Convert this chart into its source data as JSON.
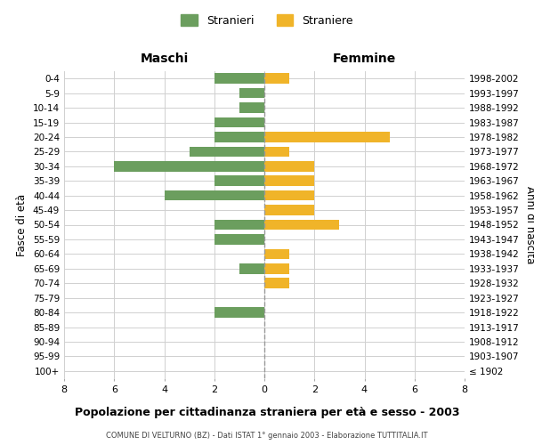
{
  "age_groups": [
    "0-4",
    "5-9",
    "10-14",
    "15-19",
    "20-24",
    "25-29",
    "30-34",
    "35-39",
    "40-44",
    "45-49",
    "50-54",
    "55-59",
    "60-64",
    "65-69",
    "70-74",
    "75-79",
    "80-84",
    "85-89",
    "90-94",
    "95-99",
    "100+"
  ],
  "birth_years": [
    "1998-2002",
    "1993-1997",
    "1988-1992",
    "1983-1987",
    "1978-1982",
    "1973-1977",
    "1968-1972",
    "1963-1967",
    "1958-1962",
    "1953-1957",
    "1948-1952",
    "1943-1947",
    "1938-1942",
    "1933-1937",
    "1928-1932",
    "1923-1927",
    "1918-1922",
    "1913-1917",
    "1908-1912",
    "1903-1907",
    "≤ 1902"
  ],
  "males": [
    2,
    1,
    1,
    2,
    2,
    3,
    6,
    2,
    4,
    0,
    2,
    2,
    0,
    1,
    0,
    0,
    2,
    0,
    0,
    0,
    0
  ],
  "females": [
    1,
    0,
    0,
    0,
    5,
    1,
    2,
    2,
    2,
    2,
    3,
    0,
    1,
    1,
    1,
    0,
    0,
    0,
    0,
    0,
    0
  ],
  "male_color": "#6b9e5e",
  "female_color": "#f0b429",
  "title": "Popolazione per cittadinanza straniera per età e sesso - 2003",
  "subtitle": "COMUNE DI VELTURNO (BZ) - Dati ISTAT 1° gennaio 2003 - Elaborazione TUTTITALIA.IT",
  "xlabel_left": "Maschi",
  "xlabel_right": "Femmine",
  "ylabel_left": "Fasce di età",
  "ylabel_right": "Anni di nascita",
  "legend_male": "Stranieri",
  "legend_female": "Straniere",
  "xlim": 8,
  "background_color": "#ffffff",
  "grid_color": "#d0d0d0"
}
